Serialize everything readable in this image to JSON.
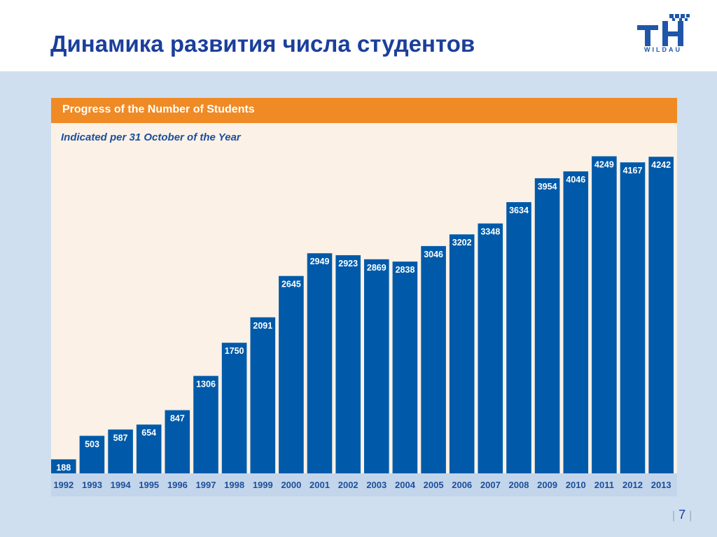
{
  "slide": {
    "title": "Динамика развития числа студентов",
    "logo_text": "WILDAU",
    "page_number": "7"
  },
  "colors": {
    "bar": "#005aa9",
    "header": "#f08a24",
    "title": "#1b3f9a",
    "axis_label": "#1b4f9c",
    "background": "#cfdff0",
    "plot_background": "#fbf1e6"
  },
  "chart_data": {
    "type": "bar",
    "title": "Progress of the Number of Students",
    "subtitle": "Indicated per 31 October of the Year",
    "xlabel": "",
    "ylabel": "",
    "categories": [
      "1992",
      "1993",
      "1994",
      "1995",
      "1996",
      "1997",
      "1998",
      "1999",
      "2000",
      "2001",
      "2002",
      "2003",
      "2004",
      "2005",
      "2006",
      "2007",
      "2008",
      "2009",
      "2010",
      "2011",
      "2012",
      "2013"
    ],
    "values": [
      188,
      503,
      587,
      654,
      847,
      1306,
      1750,
      2091,
      2645,
      2949,
      2923,
      2869,
      2838,
      3046,
      3202,
      3348,
      3634,
      3954,
      4046,
      4249,
      4167,
      4242
    ],
    "ylim": [
      0,
      4450
    ],
    "grid": false,
    "data_labels": true
  }
}
